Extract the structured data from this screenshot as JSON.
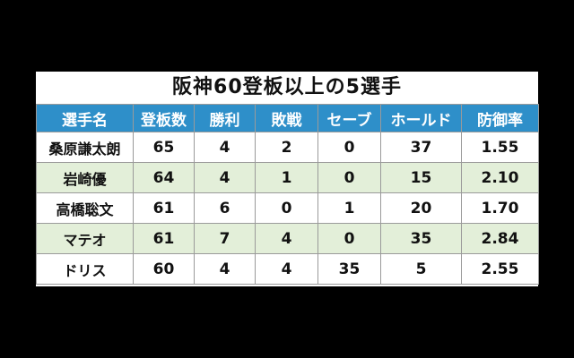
{
  "title": "阪神60登板以上の5選手",
  "headers": [
    "選手名",
    "登板数",
    "勝利",
    "敗戦",
    "セーブ",
    "ホールド",
    "防御率"
  ],
  "rows": [
    [
      "桑原謙太朗",
      "65",
      "4",
      "2",
      "0",
      "37",
      "1.55"
    ],
    [
      "岩崎優",
      "64",
      "4",
      "1",
      "0",
      "15",
      "2.10"
    ],
    [
      "高橋聡文",
      "61",
      "6",
      "0",
      "1",
      "20",
      "1.70"
    ],
    [
      "マテオ",
      "61",
      "7",
      "4",
      "0",
      "35",
      "2.84"
    ],
    [
      "ドリス",
      "60",
      "4",
      "4",
      "35",
      "5",
      "2.55"
    ]
  ],
  "colors": {
    "background": "#000000",
    "header": "#2e8fc9",
    "row_alt": "#e3efd9"
  }
}
